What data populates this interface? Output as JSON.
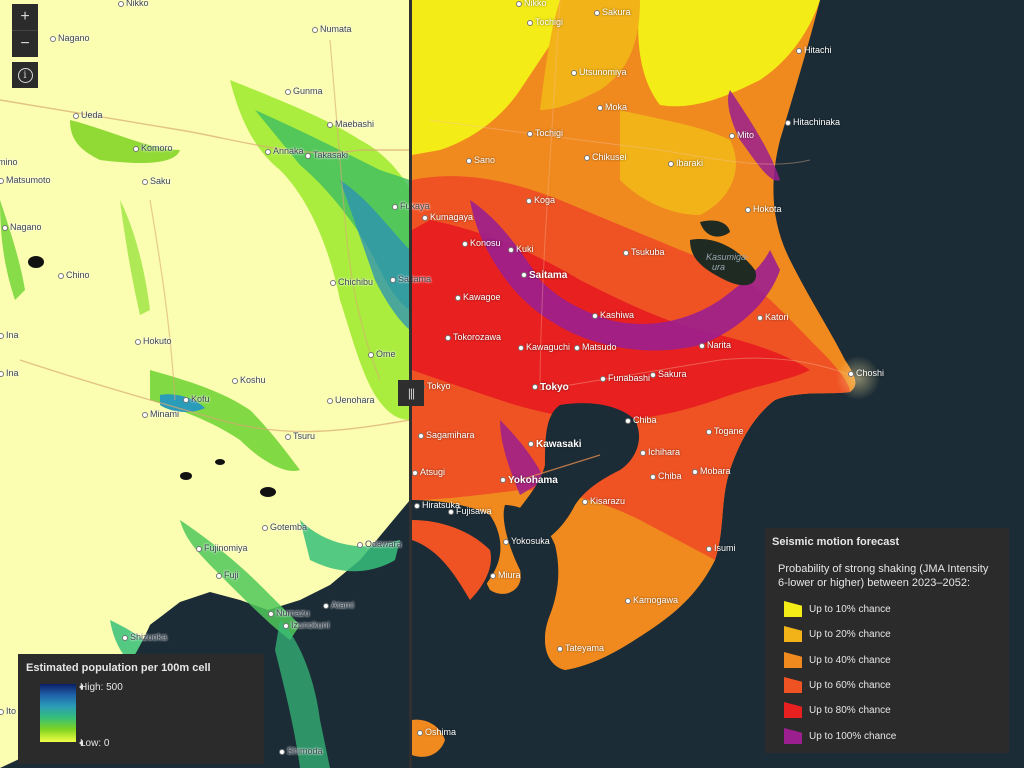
{
  "controls": {
    "zoom_in": "+",
    "zoom_out": "−",
    "info": "i",
    "swipe_handle": "|||"
  },
  "left_places": [
    "Nikko",
    "Nagano",
    "Numata",
    "Gunma",
    "Ueda",
    "Maebashi",
    "Annaka",
    "Komoro",
    "Takasaki",
    "Saku",
    "Matsumoto",
    "Nagano",
    "Chino",
    "Hokuto",
    "Kofu",
    "Koshu",
    "Minami",
    "Tsuru",
    "Uenohara",
    "Fujinomiya",
    "Fuji",
    "Gotemba",
    "Numazu",
    "Izunokuni",
    "Shizuoka",
    "Shimoda",
    "Atami",
    "Odawara",
    "Ome",
    "Chichibu",
    "Fukaya",
    "Saitama",
    "Ina",
    "imino",
    "Ina",
    "Ito"
  ],
  "right_places": [
    "Nikko",
    "Sakura",
    "Tochigi",
    "Utsunomiya",
    "Hitachi",
    "Moka",
    "Tochigi",
    "Hitachinaka",
    "Mito",
    "Sano",
    "Chikusei",
    "Ibaraki",
    "Koga",
    "Hokota",
    "Kumagaya",
    "Konosu",
    "Kuki",
    "Tsukuba",
    "Saitama",
    "Kawagoe",
    "Kashiwa",
    "Tokorozawa",
    "Kawaguchi",
    "Matsudo",
    "Narita",
    "Katori",
    "Choshi",
    "Tokyo",
    "Funabashi",
    "Sakura",
    "Tokyo",
    "Chiba",
    "Sagamihara",
    "Kawasaki",
    "Ichihara",
    "Togane",
    "Yokohama",
    "Chiba",
    "Mobara",
    "Kisarazu",
    "Fujisawa",
    "Yokosuka",
    "Isumi",
    "Miura",
    "Kamogawa",
    "Tateyama",
    "Oshima",
    "Atsugi",
    "Hiratsuka"
  ],
  "water_labels": [
    "Kasumiga-",
    "ura"
  ],
  "population_legend": {
    "title": "Estimated population per 100m cell",
    "high": "High: 500",
    "low": "Low: 0"
  },
  "seismic_legend": {
    "title": "Seismic motion forecast",
    "description": "Probability of strong shaking (JMA Intensity 6-lower or higher) between 2023–2052:",
    "classes": [
      {
        "label": "Up to 10% chance",
        "color": "#f4ec17"
      },
      {
        "label": "Up to 20% chance",
        "color": "#f2b319"
      },
      {
        "label": "Up to 40% chance",
        "color": "#f08a1f"
      },
      {
        "label": "Up to 60% chance",
        "color": "#ef5324"
      },
      {
        "label": "Up to 80% chance",
        "color": "#e8201f"
      },
      {
        "label": "Up to 100% chance",
        "color": "#9b1f8e"
      }
    ]
  }
}
